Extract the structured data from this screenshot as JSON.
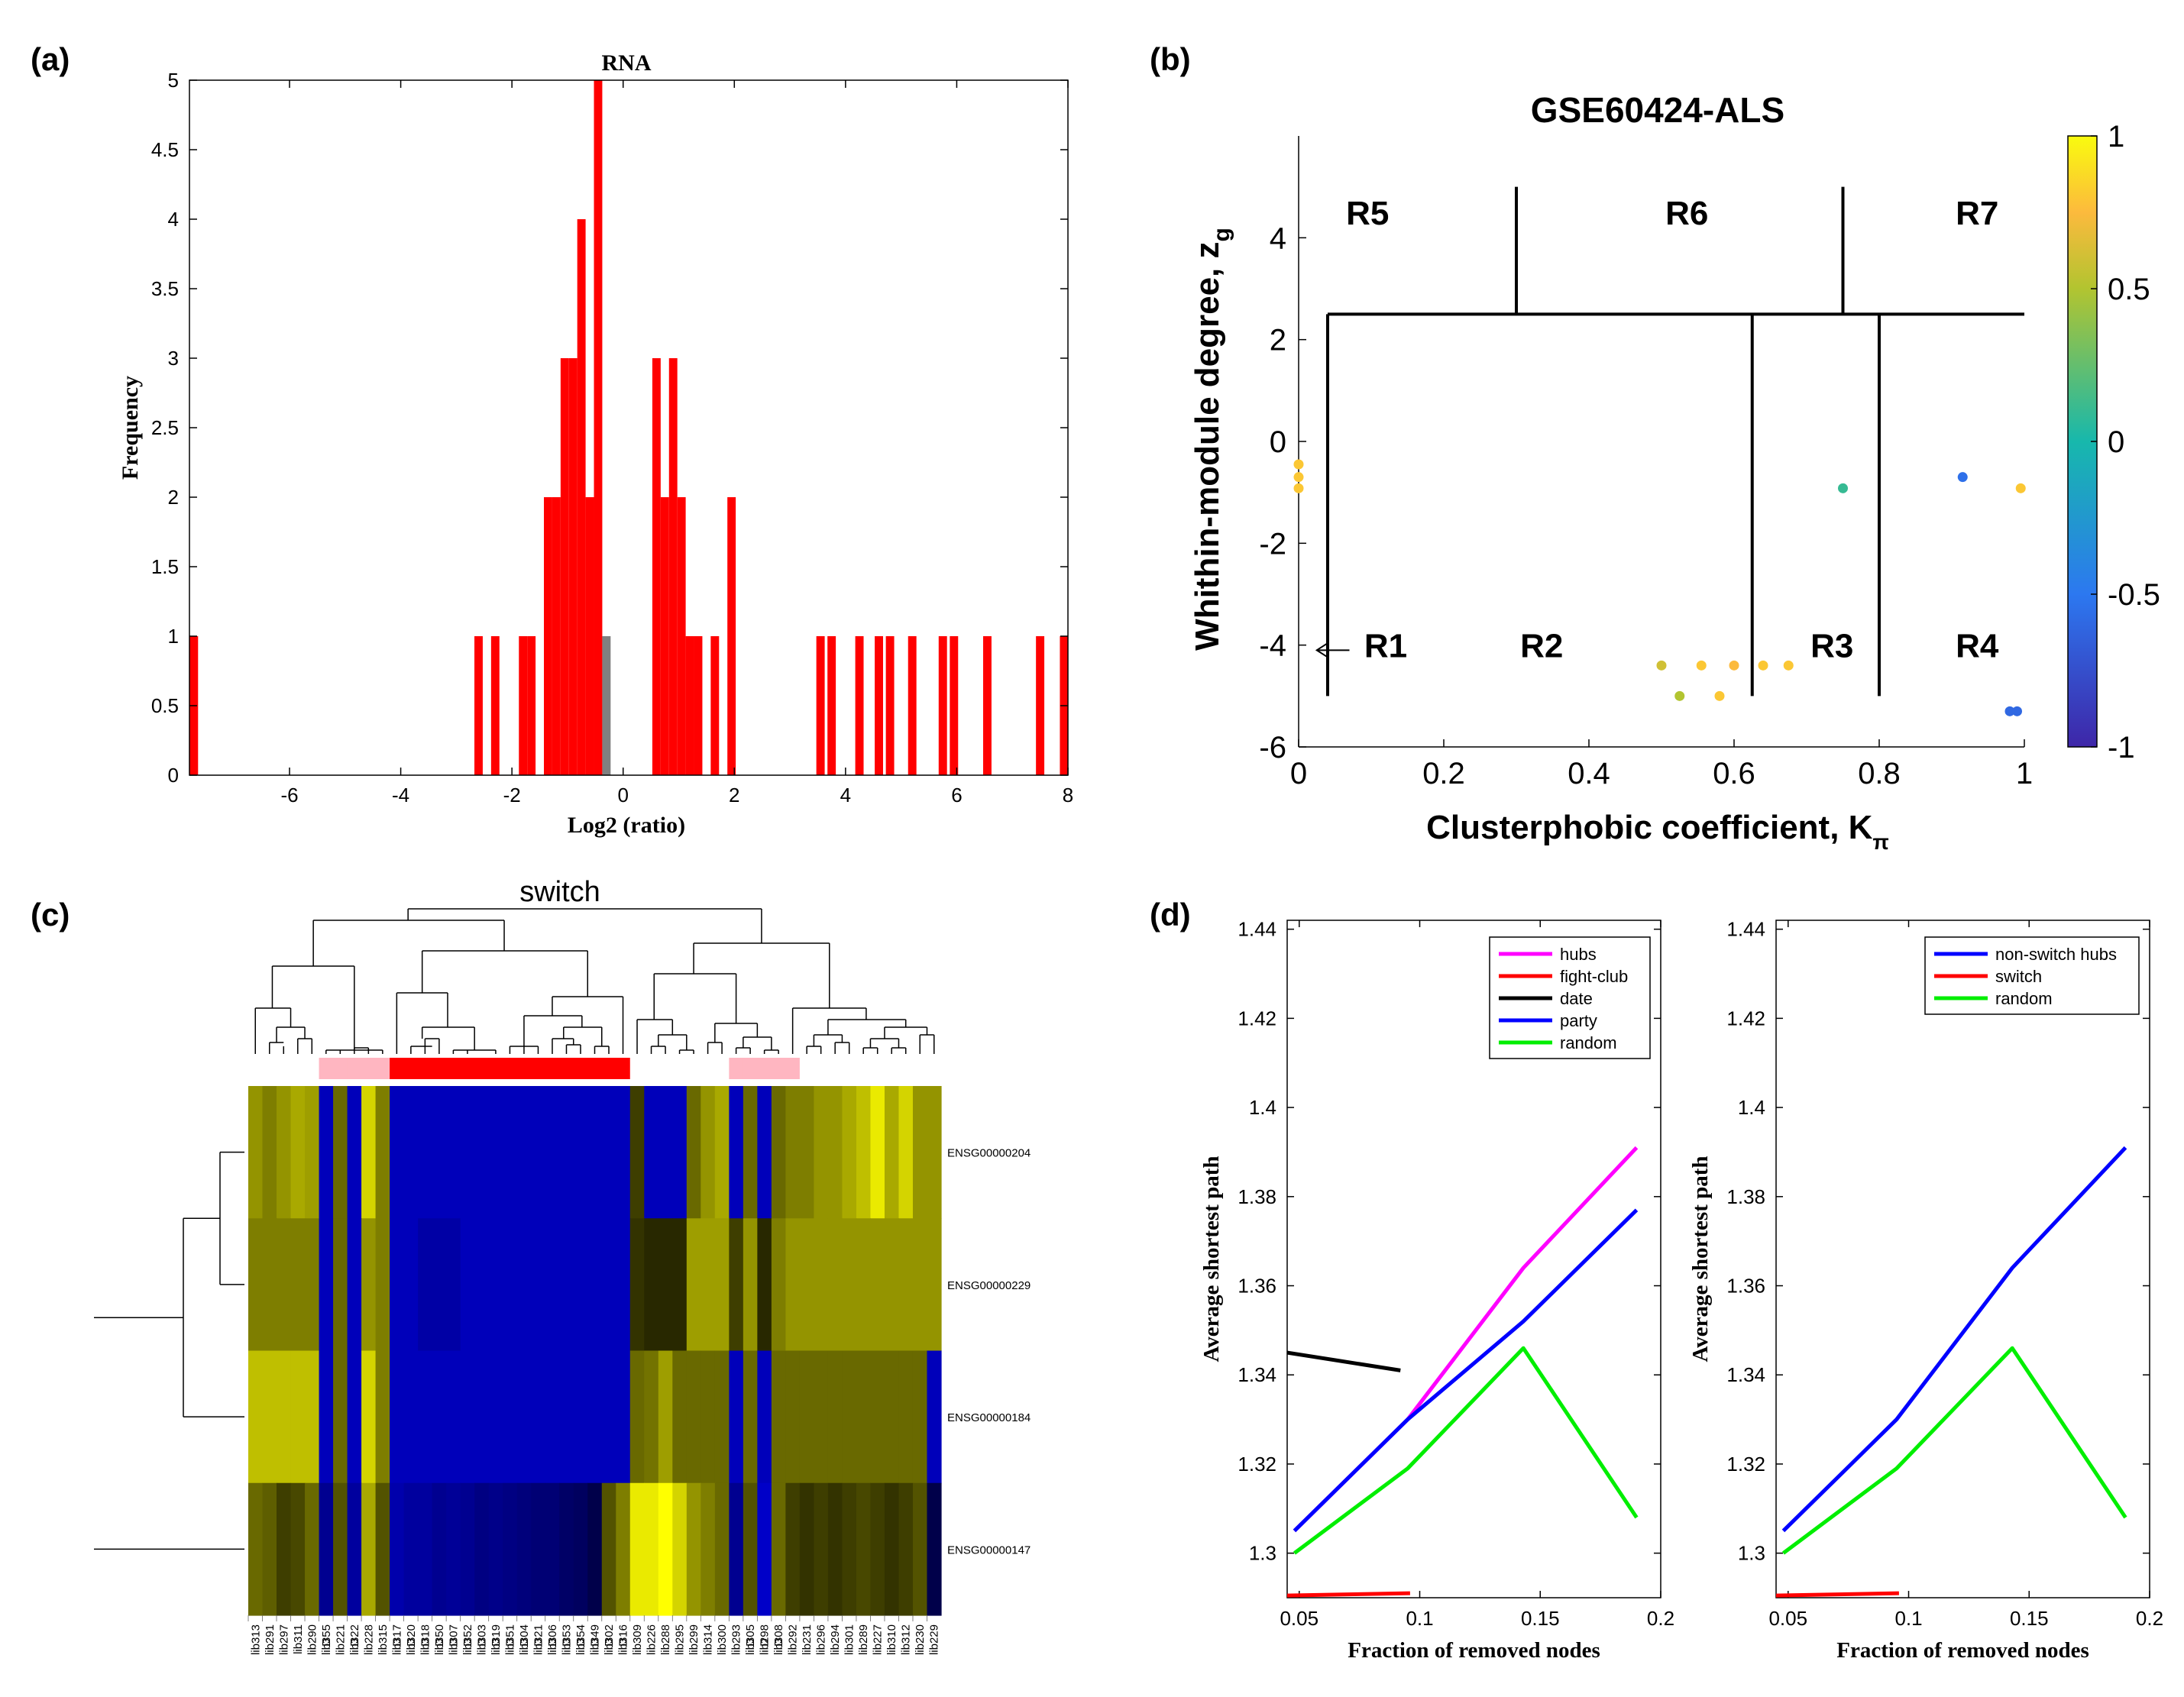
{
  "panel_labels": {
    "a": "(a)",
    "b": "(b)",
    "c": "(c)",
    "d": "(d)"
  },
  "chart_data": [
    {
      "id": "a",
      "type": "bar",
      "title": "RNA",
      "xlabel": "Log2 (ratio)",
      "ylabel": "Frequency",
      "xlim": [
        -7.8,
        8.0
      ],
      "ylim": [
        0,
        5
      ],
      "xticks": [
        -6,
        -4,
        -2,
        0,
        2,
        4,
        6,
        8
      ],
      "yticks": [
        0,
        0.5,
        1,
        1.5,
        2,
        2.5,
        3,
        3.5,
        4,
        4.5,
        5
      ],
      "bar_width": 0.15,
      "bars": [
        {
          "x": -7.72,
          "y": 1
        },
        {
          "x": -2.6,
          "y": 1
        },
        {
          "x": -2.3,
          "y": 1
        },
        {
          "x": -1.8,
          "y": 1
        },
        {
          "x": -1.65,
          "y": 1
        },
        {
          "x": -1.35,
          "y": 2
        },
        {
          "x": -1.2,
          "y": 2
        },
        {
          "x": -1.05,
          "y": 3
        },
        {
          "x": -0.9,
          "y": 3
        },
        {
          "x": -0.75,
          "y": 4
        },
        {
          "x": -0.6,
          "y": 2
        },
        {
          "x": -0.45,
          "y": 5
        },
        {
          "x": -0.3,
          "y": 1,
          "color": "#808080"
        },
        {
          "x": 0.6,
          "y": 3
        },
        {
          "x": 0.75,
          "y": 2
        },
        {
          "x": 0.9,
          "y": 3
        },
        {
          "x": 1.05,
          "y": 2
        },
        {
          "x": 1.2,
          "y": 1
        },
        {
          "x": 1.35,
          "y": 1
        },
        {
          "x": 1.65,
          "y": 1
        },
        {
          "x": 1.95,
          "y": 2
        },
        {
          "x": 3.55,
          "y": 1
        },
        {
          "x": 3.75,
          "y": 1
        },
        {
          "x": 4.25,
          "y": 1
        },
        {
          "x": 4.6,
          "y": 1
        },
        {
          "x": 4.8,
          "y": 1
        },
        {
          "x": 5.2,
          "y": 1
        },
        {
          "x": 5.75,
          "y": 1
        },
        {
          "x": 5.95,
          "y": 1
        },
        {
          "x": 6.55,
          "y": 1
        },
        {
          "x": 7.5,
          "y": 1
        },
        {
          "x": 7.93,
          "y": 1
        }
      ],
      "bar_color": "#ff0000"
    },
    {
      "id": "b",
      "type": "scatter",
      "title": "GSE60424-ALS",
      "xlabel": "Clusterphobic coefficient, K",
      "xlabel_sub": "π",
      "ylabel": "Whithin-module degree, z",
      "ylabel_sub": "g",
      "xlim": [
        0,
        1
      ],
      "ylim": [
        -6,
        6
      ],
      "xticks": [
        0,
        0.2,
        0.4,
        0.6,
        0.8,
        1
      ],
      "xtick_labels": [
        "0",
        "0.2",
        "0.4",
        "0.6",
        "0.8",
        "1"
      ],
      "yticks": [
        -6,
        -4,
        -2,
        0,
        2,
        4
      ],
      "ytick_labels": [
        "-6",
        "-4",
        "-2",
        "0",
        "2",
        "4"
      ],
      "region_lines": [
        {
          "x1": 0.04,
          "y1": 2.5,
          "x2": 1.0,
          "y2": 2.5
        },
        {
          "x1": 0.04,
          "y1": 2.5,
          "x2": 0.04,
          "y2": -5.0
        },
        {
          "x1": 0.3,
          "y1": 2.5,
          "x2": 0.3,
          "y2": 5.0
        },
        {
          "x1": 0.75,
          "y1": 2.5,
          "x2": 0.75,
          "y2": 5.0
        },
        {
          "x1": 0.625,
          "y1": 2.5,
          "x2": 0.625,
          "y2": -5.0
        },
        {
          "x1": 0.8,
          "y1": 2.5,
          "x2": 0.8,
          "y2": -5.0
        }
      ],
      "regions": [
        {
          "label": "R5",
          "x": 0.095,
          "y": 4.5
        },
        {
          "label": "R6",
          "x": 0.535,
          "y": 4.5
        },
        {
          "label": "R7",
          "x": 0.935,
          "y": 4.5
        },
        {
          "label": "R1",
          "x": 0.12,
          "y": -4.0
        },
        {
          "label": "R2",
          "x": 0.335,
          "y": -4.0
        },
        {
          "label": "R3",
          "x": 0.735,
          "y": -4.0
        },
        {
          "label": "R4",
          "x": 0.935,
          "y": -4.0
        }
      ],
      "arrow": {
        "x_from": 0.07,
        "x_to": 0.025,
        "y": -4.1
      },
      "points": [
        {
          "x": 0.0,
          "y": -0.45,
          "v": 0.8
        },
        {
          "x": 0.0,
          "y": -0.7,
          "v": 0.8
        },
        {
          "x": 0.0,
          "y": -0.92,
          "v": 0.8
        },
        {
          "x": 0.75,
          "y": -0.92,
          "v": 0.1
        },
        {
          "x": 0.915,
          "y": -0.7,
          "v": -0.55
        },
        {
          "x": 0.995,
          "y": -0.92,
          "v": 0.8
        },
        {
          "x": 0.5,
          "y": -4.4,
          "v": 0.6
        },
        {
          "x": 0.555,
          "y": -4.4,
          "v": 0.8
        },
        {
          "x": 0.6,
          "y": -4.4,
          "v": 0.75
        },
        {
          "x": 0.64,
          "y": -4.4,
          "v": 0.8
        },
        {
          "x": 0.675,
          "y": -4.4,
          "v": 0.8
        },
        {
          "x": 0.525,
          "y": -5.0,
          "v": 0.5
        },
        {
          "x": 0.58,
          "y": -5.0,
          "v": 0.8
        },
        {
          "x": 0.98,
          "y": -5.3,
          "v": -0.6
        },
        {
          "x": 0.99,
          "y": -5.3,
          "v": -0.6
        }
      ],
      "colorbar": {
        "min": -1,
        "max": 1,
        "ticks": [
          -1,
          -0.5,
          0,
          0.5,
          1
        ],
        "tick_labels": [
          "-1",
          "-0.5",
          "0",
          "0.5",
          "1"
        ]
      }
    },
    {
      "id": "c",
      "type": "heatmap",
      "title": "switch",
      "rows": [
        "ENSG00000204",
        "ENSG00000229",
        "ENSG00000184",
        "ENSG00000147"
      ],
      "columns": [
        "lib313",
        "lib291",
        "lib297",
        "lib311",
        "lib290",
        "lib355",
        "lib221",
        "lib322",
        "lib228",
        "lib315",
        "lib317",
        "lib320",
        "lib318",
        "lib350",
        "lib307",
        "lib352",
        "lib303",
        "lib319",
        "lib351",
        "lib304",
        "lib321",
        "lib306",
        "lib353",
        "lib354",
        "lib349",
        "lib302",
        "lib316",
        "lib309",
        "lib226",
        "lib288",
        "lib295",
        "lib299",
        "lib314",
        "lib300",
        "lib293",
        "lib305",
        "lib298",
        "lib308",
        "lib292",
        "lib231",
        "lib296",
        "lib294",
        "lib301",
        "lib289",
        "lib227",
        "lib310",
        "lib312",
        "lib230",
        "lib229"
      ],
      "column_flags": [
        "",
        "",
        "",
        "",
        "",
        "D",
        "",
        "D",
        "",
        "",
        "D",
        "D",
        "D",
        "D",
        "D",
        "D",
        "D",
        "D",
        "D",
        "D",
        "D",
        "D",
        "D",
        "D",
        "D",
        "D",
        "D",
        "",
        "",
        "",
        "",
        "",
        "",
        "",
        "",
        "D",
        "D",
        "D",
        "",
        "",
        "",
        "",
        "",
        "",
        "",
        "",
        "",
        "",
        ""
      ],
      "group_colors": [
        "white",
        "white",
        "white",
        "white",
        "white",
        "pink",
        "pink",
        "pink",
        "pink",
        "pink",
        "red",
        "red",
        "red",
        "red",
        "red",
        "red",
        "red",
        "red",
        "red",
        "red",
        "red",
        "red",
        "red",
        "red",
        "red",
        "red",
        "red",
        "white",
        "white",
        "white",
        "white",
        "white",
        "white",
        "white",
        "pink",
        "pink",
        "pink",
        "pink",
        "pink",
        "white",
        "white",
        "white",
        "white",
        "white",
        "white",
        "white",
        "white",
        "white",
        "white"
      ],
      "values": [
        [
          0.5,
          0.4,
          0.5,
          0.6,
          0.55,
          -0.9,
          0.3,
          -0.9,
          0.8,
          0.4,
          -0.9,
          -0.9,
          -0.9,
          -0.9,
          -0.9,
          -0.9,
          -0.9,
          -0.9,
          -0.9,
          -0.9,
          -0.9,
          -0.9,
          -0.9,
          -0.9,
          -0.9,
          -0.9,
          -0.9,
          0.1,
          -0.9,
          -0.9,
          -0.9,
          0.3,
          0.5,
          0.6,
          -0.9,
          0.3,
          -0.9,
          0.3,
          0.4,
          0.4,
          0.5,
          0.5,
          0.6,
          0.7,
          0.9,
          0.6,
          0.8,
          0.5,
          0.5
        ],
        [
          0.4,
          0.4,
          0.4,
          0.4,
          0.4,
          -0.9,
          0.3,
          -0.9,
          0.5,
          0.4,
          -0.9,
          -0.9,
          -0.75,
          -0.75,
          -0.75,
          -0.9,
          -0.9,
          -0.9,
          -0.9,
          -0.9,
          -0.9,
          -0.9,
          -0.9,
          -0.9,
          -0.9,
          -0.9,
          -0.9,
          0.05,
          0.0,
          0.0,
          0.0,
          0.55,
          0.55,
          0.55,
          0.1,
          0.5,
          0.0,
          0.4,
          0.5,
          0.5,
          0.5,
          0.5,
          0.5,
          0.5,
          0.5,
          0.5,
          0.5,
          0.5,
          0.5
        ],
        [
          0.7,
          0.7,
          0.7,
          0.7,
          0.7,
          -0.9,
          0.3,
          -0.9,
          0.8,
          0.4,
          -0.9,
          -0.9,
          -0.9,
          -0.9,
          -0.9,
          -0.9,
          -0.9,
          -0.9,
          -0.9,
          -0.9,
          -0.9,
          -0.9,
          -0.9,
          -0.9,
          -0.9,
          -0.9,
          -0.9,
          0.3,
          0.35,
          0.55,
          0.3,
          0.3,
          0.3,
          0.3,
          -0.9,
          0.3,
          -0.9,
          0.3,
          0.3,
          0.3,
          0.3,
          0.3,
          0.3,
          0.3,
          0.3,
          0.3,
          0.3,
          0.3,
          -0.9
        ],
        [
          0.3,
          0.25,
          0.1,
          0.15,
          0.3,
          -0.6,
          0.2,
          -0.7,
          0.6,
          0.2,
          -0.8,
          -0.7,
          -0.7,
          -0.6,
          -0.65,
          -0.6,
          -0.5,
          -0.55,
          -0.5,
          -0.45,
          -0.4,
          -0.4,
          -0.3,
          -0.25,
          -0.1,
          0.2,
          0.4,
          0.9,
          0.9,
          1.0,
          0.8,
          0.5,
          0.4,
          0.3,
          -0.6,
          0.2,
          -1.0,
          0.3,
          0.1,
          0.05,
          0.1,
          0.05,
          0.1,
          0.15,
          0.1,
          0.05,
          0.1,
          0.2,
          -0.1
        ]
      ]
    },
    {
      "id": "d-left",
      "type": "line",
      "xlabel": "Fraction of removed nodes",
      "ylabel": "Average shortest path",
      "xlim": [
        0.045,
        0.2
      ],
      "ylim": [
        1.29,
        1.442
      ],
      "xticks": [
        0.05,
        0.1,
        0.15,
        0.2
      ],
      "xtick_labels": [
        "0.05",
        "0.1",
        "0.15",
        "0.2"
      ],
      "yticks": [
        1.3,
        1.32,
        1.34,
        1.36,
        1.38,
        1.4,
        1.42,
        1.44
      ],
      "ytick_labels": [
        "1.3",
        "1.32",
        "1.34",
        "1.36",
        "1.38",
        "1.4",
        "1.42",
        "1.44"
      ],
      "series": [
        {
          "name": "hubs",
          "color": "#ff00ff",
          "x": [
            0.048,
            0.095,
            0.143,
            0.19
          ],
          "y": [
            1.305,
            1.33,
            1.364,
            1.391
          ]
        },
        {
          "name": "fight-club",
          "color": "#ff0000",
          "x": [
            0.045,
            0.096
          ],
          "y": [
            1.2905,
            1.291
          ]
        },
        {
          "name": "date",
          "color": "#000000",
          "x": [
            0.045,
            0.092
          ],
          "y": [
            1.345,
            1.341
          ]
        },
        {
          "name": "party",
          "color": "#0000ff",
          "x": [
            0.048,
            0.095,
            0.143,
            0.19
          ],
          "y": [
            1.305,
            1.33,
            1.352,
            1.377
          ]
        },
        {
          "name": "random",
          "color": "#00ee00",
          "x": [
            0.048,
            0.095,
            0.143,
            0.19
          ],
          "y": [
            1.3,
            1.319,
            1.346,
            1.308
          ]
        }
      ]
    },
    {
      "id": "d-right",
      "type": "line",
      "xlabel": "Fraction of removed nodes",
      "ylabel": "Average shortest path",
      "xlim": [
        0.045,
        0.2
      ],
      "ylim": [
        1.29,
        1.442
      ],
      "xticks": [
        0.05,
        0.1,
        0.15,
        0.2
      ],
      "xtick_labels": [
        "0.05",
        "0.1",
        "0.15",
        "0.2"
      ],
      "yticks": [
        1.3,
        1.32,
        1.34,
        1.36,
        1.38,
        1.4,
        1.42,
        1.44
      ],
      "ytick_labels": [
        "1.3",
        "1.32",
        "1.34",
        "1.36",
        "1.38",
        "1.4",
        "1.42",
        "1.44"
      ],
      "series": [
        {
          "name": "non-switch hubs",
          "color": "#0000ff",
          "x": [
            0.048,
            0.095,
            0.143,
            0.19
          ],
          "y": [
            1.305,
            1.33,
            1.364,
            1.391
          ]
        },
        {
          "name": "switch",
          "color": "#ff0000",
          "x": [
            0.045,
            0.096
          ],
          "y": [
            1.2905,
            1.291
          ]
        },
        {
          "name": "random",
          "color": "#00ee00",
          "x": [
            0.048,
            0.095,
            0.143,
            0.19
          ],
          "y": [
            1.3,
            1.319,
            1.346,
            1.308
          ]
        }
      ]
    }
  ]
}
